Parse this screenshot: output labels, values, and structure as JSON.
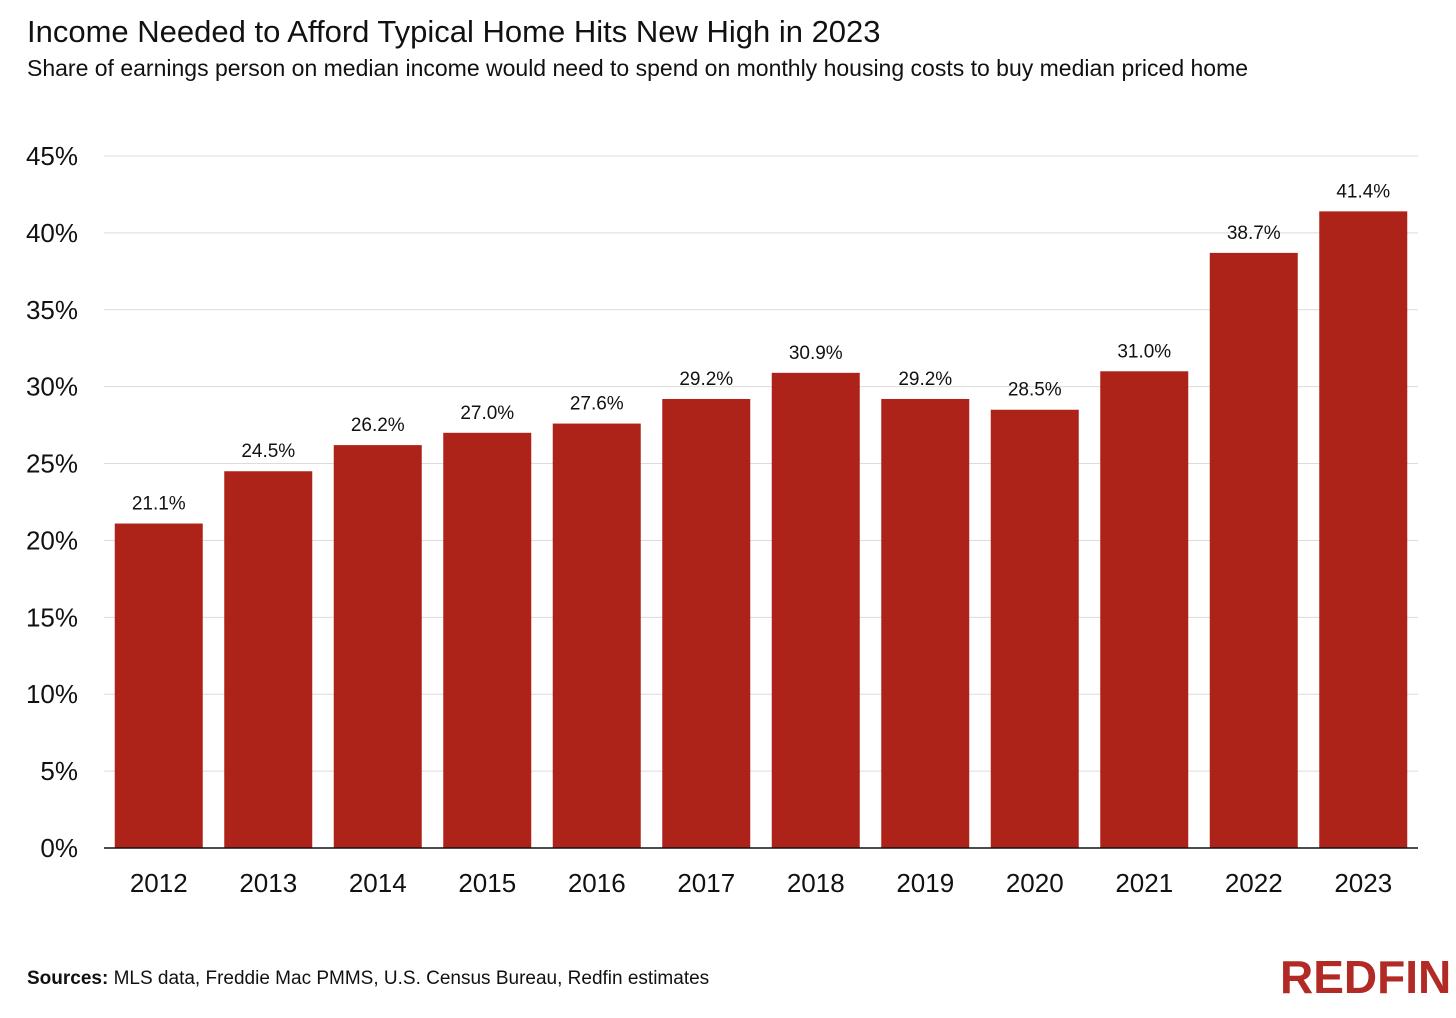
{
  "chart_data": {
    "type": "bar",
    "title": "Income Needed to Afford Typical Home Hits New High in 2023",
    "subtitle": "Share of earnings person on median income would need to spend on monthly housing costs to buy median priced home",
    "categories": [
      "2012",
      "2013",
      "2014",
      "2015",
      "2016",
      "2017",
      "2018",
      "2019",
      "2020",
      "2021",
      "2022",
      "2023"
    ],
    "values": [
      21.1,
      24.5,
      26.2,
      27.0,
      27.6,
      29.2,
      30.9,
      29.2,
      28.5,
      31.0,
      38.7,
      41.4
    ],
    "value_labels": [
      "21.1%",
      "24.5%",
      "26.2%",
      "27.0%",
      "27.6%",
      "29.2%",
      "30.9%",
      "29.2%",
      "28.5%",
      "31.0%",
      "38.7%",
      "41.4%"
    ],
    "ylim": [
      0,
      45
    ],
    "yticks": [
      0,
      5,
      10,
      15,
      20,
      25,
      30,
      35,
      40,
      45
    ],
    "ytick_labels": [
      "0%",
      "5%",
      "10%",
      "15%",
      "20%",
      "25%",
      "30%",
      "35%",
      "40%",
      "45%"
    ],
    "xlabel": "",
    "ylabel": "",
    "grid": true,
    "bar_color": "#ad231a"
  },
  "footer": {
    "sources_label": "Sources:",
    "sources_text": " MLS data, Freddie Mac PMMS, U.S. Census Bureau, Redfin estimates"
  },
  "logo": {
    "text": "REDFIN",
    "color": "#b22a25"
  }
}
